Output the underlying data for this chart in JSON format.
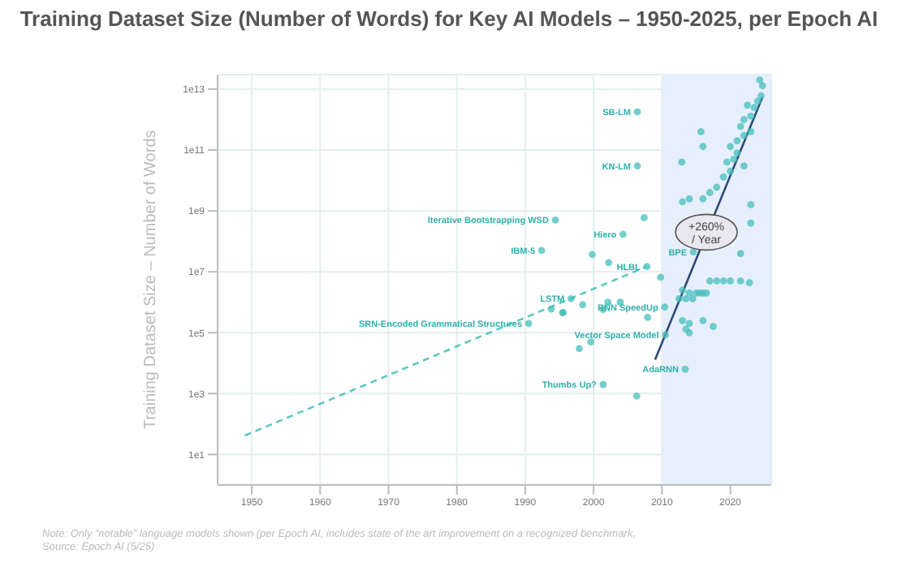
{
  "chart_data": {
    "type": "scatter",
    "title": "Training Dataset Size (Number of Words) for Key AI Models – 1950-2025, per Epoch AI",
    "ylabel": "Training Dataset Size – Number of Words",
    "xlim": [
      1945,
      2026
    ],
    "xticks": [
      1950,
      1960,
      1970,
      1980,
      1990,
      2000,
      2010,
      2020
    ],
    "ylim": [
      1,
      30000000000000
    ],
    "log": true,
    "yticks": [
      {
        "value": 10,
        "label": "1e1"
      },
      {
        "value": 1000,
        "label": "1e3"
      },
      {
        "value": 100000,
        "label": "1e5"
      },
      {
        "value": 10000000,
        "label": "1e7"
      },
      {
        "value": 1000000000,
        "label": "1e9"
      },
      {
        "value": 100000000000,
        "label": "1e11"
      },
      {
        "value": 10000000000000,
        "label": "1e13"
      }
    ],
    "grid": true,
    "legend": false,
    "marker": "circle",
    "bands": [
      {
        "axis": "x",
        "from": 2010,
        "to": 2026,
        "color": "#e6effb"
      }
    ],
    "series": [
      {
        "color": "#45bfbb",
        "x": [
          1994.4,
          1992.4,
          1990.5,
          1996.7,
          1993.8,
          1995.5,
          2001.4,
          2006.3,
          2013.4,
          2010.5,
          2010.4,
          1997.9,
          1999.6,
          1995.5,
          1998.4,
          2001.4,
          2002.1,
          2003.9,
          2007.9,
          2007.8,
          2009.8,
          2006.4,
          2006.4,
          2015.7,
          2004.3,
          2007.4,
          2014.6,
          1999.8,
          2002.2,
          2012.9,
          2016,
          2012.5,
          2013,
          2013.5,
          2014,
          2014.5,
          2015,
          2015.5,
          2016,
          2016.5,
          2017,
          2018,
          2019,
          2020,
          2021.5,
          2022.8,
          2013,
          2014,
          2016,
          2017.5,
          2013.5,
          2014,
          2021.5,
          2013,
          2014,
          2016,
          2017,
          2018,
          2019,
          2020,
          2019.5,
          2020.5,
          2021,
          2020,
          2021,
          2022,
          2021.5,
          2022,
          2023,
          2023.5,
          2024,
          2024.5,
          2024.7,
          2024.3,
          2022.5,
          2023,
          2022,
          2023,
          2023
        ],
        "values": [
          500000000.0,
          50000000.0,
          200000.0,
          1300000.0,
          600000.0,
          450000.0,
          2000.0,
          830,
          6300,
          85000,
          700000,
          30000,
          50000,
          460000,
          830000,
          580000,
          1000000.0,
          1000000.0,
          320000,
          15000000.0,
          6600000.0,
          1800000000000.0,
          30000000000.0,
          400000000000.0,
          170000000.0,
          600000000.0,
          45000000.0,
          37000000.0,
          20000000.0,
          40000000000.0,
          130000000000.0,
          1300000.0,
          2500000.0,
          1300000.0,
          2000000.0,
          1300000.0,
          2000000.0,
          2000000.0,
          2000000.0,
          2000000.0,
          5000000.0,
          5000000.0,
          5000000.0,
          5000000.0,
          5000000.0,
          4400000.0,
          250000.0,
          200000.0,
          250000.0,
          160000.0,
          130000.0,
          100000.0,
          40000000.0,
          2000000000.0,
          2500000000.0,
          2500000000.0,
          4000000000.0,
          6000000000.0,
          13000000000.0,
          20000000000.0,
          40000000000.0,
          50000000000.0,
          80000000000.0,
          130000000000.0,
          200000000000.0,
          300000000000.0,
          600000000000.0,
          1000000000000.0,
          1300000000000.0,
          2500000000000.0,
          4000000000000.0,
          6000000000000.0,
          13000000000000.0,
          20000000000000.0,
          3000000000000.0,
          400000000000.0,
          30000000000.0,
          1600000000.0,
          400000000.0
        ]
      },
      {
        "type": "line",
        "color": "#5cc8c4",
        "line_style": "dashed",
        "marker": "none",
        "x": [
          1949,
          2007.8
        ],
        "values": [
          42,
          15000000
        ]
      },
      {
        "type": "line",
        "color": "#2e4a78",
        "line_style": "solid",
        "marker": "none",
        "x": [
          2009,
          2024.7
        ],
        "values": [
          13000,
          5500000000000
        ]
      }
    ],
    "annotations": [
      {
        "text": "+260% / Year",
        "x": 2016.5,
        "y": 200000000
      },
      {
        "text": "Iterative Bootstrapping WSD",
        "x": 1994.4,
        "y": 500000000
      },
      {
        "text": "IBM-5",
        "x": 1992.4,
        "y": 50000000
      },
      {
        "text": "SRN-Encoded Grammatical Structures",
        "x": 1990.5,
        "y": 200000
      },
      {
        "text": "LSTM",
        "x": 1996.7,
        "y": 1300000
      },
      {
        "text": "Thumbs Up?",
        "x": 2001.4,
        "y": 2000
      },
      {
        "text": "AdaRNN",
        "x": 2013.4,
        "y": 6300
      },
      {
        "text": "Vector Space Model",
        "x": 2010.5,
        "y": 85000
      },
      {
        "text": "RNN SpeedUp",
        "x": 2010.4,
        "y": 700000
      },
      {
        "text": "HLBL",
        "x": 2007.8,
        "y": 15000000
      },
      {
        "text": "SB-LM",
        "x": 2006.4,
        "y": 1800000000000
      },
      {
        "text": "KN-LM",
        "x": 2006.4,
        "y": 30000000000
      },
      {
        "text": "Hiero",
        "x": 2004.3,
        "y": 170000000
      },
      {
        "text": "BPE",
        "x": 2014.6,
        "y": 45000000
      },
      "Note: Only “notable” language models shown (per Epoch AI, includes state of the art improvement on a recognized benchmark,",
      "Source: Epoch AI (5/25)"
    ]
  }
}
